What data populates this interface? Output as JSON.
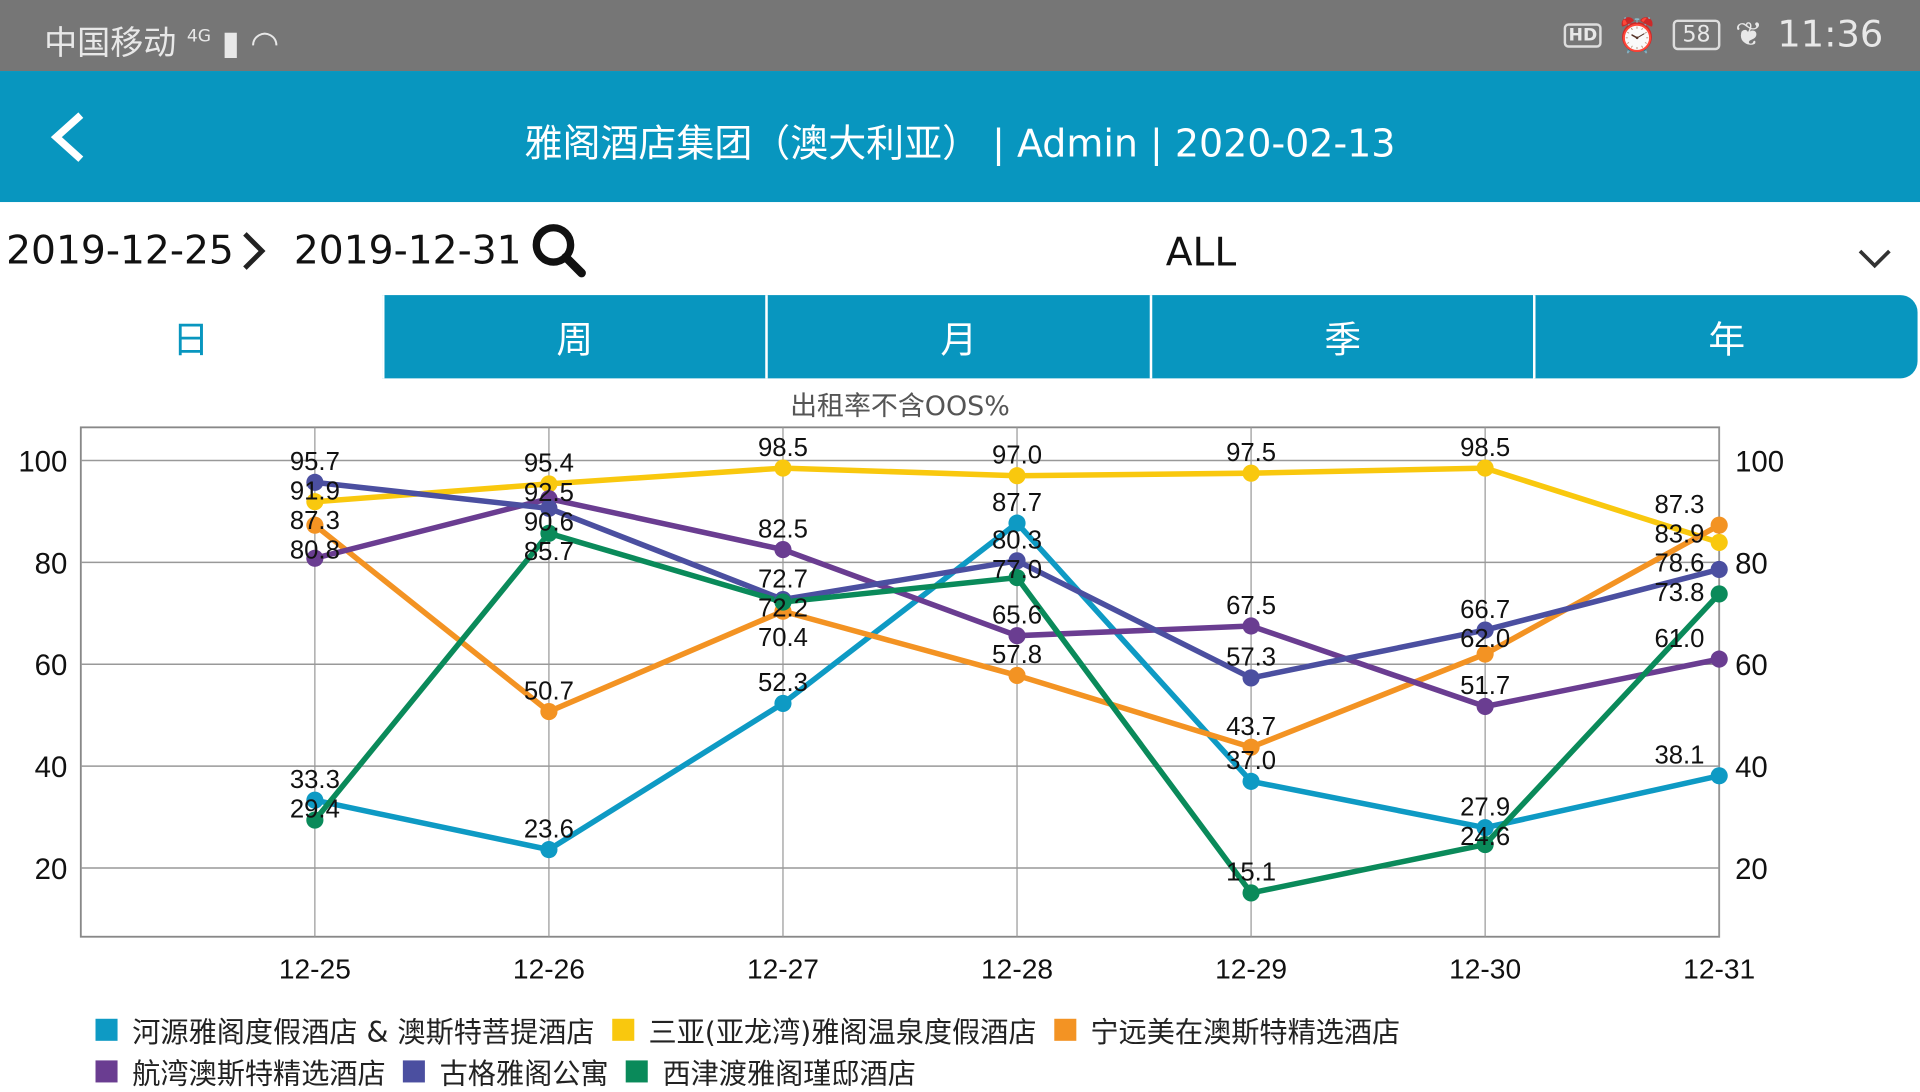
{
  "status_bar": {
    "carrier": "中国移动",
    "network": "4G",
    "hd": "HD",
    "battery": "58",
    "time": "11:36"
  },
  "header": {
    "title": "雅阁酒店集团（澳大利亚） | Admin | 2020-02-13"
  },
  "filter": {
    "start_date": "2019-12-25",
    "end_date": "2019-12-31",
    "hotel_select": "ALL"
  },
  "tabs": [
    {
      "label": "日",
      "active": true
    },
    {
      "label": "周"
    },
    {
      "label": "月"
    },
    {
      "label": "季"
    },
    {
      "label": "年"
    }
  ],
  "chart_data": {
    "type": "line",
    "title": "出租率不含OOS%",
    "categories": [
      "12-25",
      "12-26",
      "12-27",
      "12-28",
      "12-29",
      "12-30",
      "12-31"
    ],
    "ylim": [
      6.5,
      106.5
    ],
    "yticks": [
      "20",
      "40",
      "60",
      "80",
      "100"
    ],
    "grid": true,
    "legend_position": "bottom",
    "series": [
      {
        "name": "河源雅阁度假酒店 & 澳斯特菩提酒店",
        "color": "#0e9ac4",
        "values": [
          33.3,
          23.6,
          52.3,
          87.7,
          37.0,
          27.9,
          38.1
        ]
      },
      {
        "name": "三亚(亚龙湾)雅阁温泉度假酒店",
        "color": "#f9c80e",
        "values": [
          91.9,
          95.4,
          98.5,
          97.0,
          97.5,
          98.5,
          83.9
        ]
      },
      {
        "name": "宁远美在澳斯特精选酒店",
        "color": "#f39323",
        "values": [
          87.3,
          50.7,
          70.4,
          57.8,
          43.7,
          62.0,
          87.3
        ]
      },
      {
        "name": "航湾澳斯特精选酒店",
        "color": "#6a3d91",
        "values": [
          80.8,
          92.5,
          82.5,
          65.6,
          67.5,
          51.7,
          61.0
        ]
      },
      {
        "name": "古格雅阁公寓",
        "color": "#4b4fa0",
        "values": [
          95.7,
          90.6,
          72.7,
          80.3,
          57.3,
          66.7,
          78.6
        ]
      },
      {
        "name": "西津渡雅阁瑾邸酒店",
        "color": "#0a8a5a",
        "values": [
          29.4,
          85.7,
          72.2,
          77.0,
          15.1,
          24.6,
          73.8
        ]
      }
    ]
  }
}
